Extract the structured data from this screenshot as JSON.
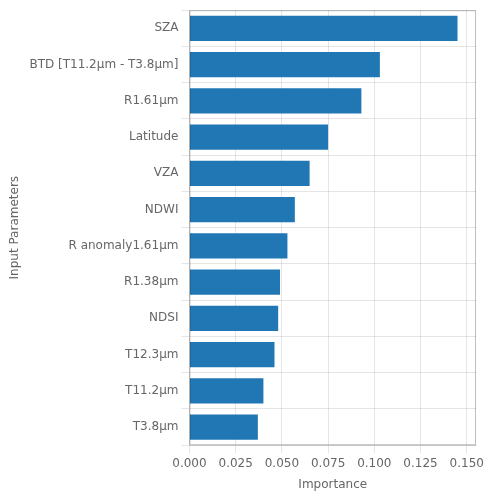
{
  "chart_data": {
    "type": "bar",
    "orientation": "horizontal",
    "xlabel": "Importance",
    "ylabel": "Input Parameters",
    "categories": [
      "T3.8μm",
      "T11.2μm",
      "T12.3μm",
      "NDSI",
      "R1.38μm",
      "R anomaly1.61μm",
      "NDWI",
      "VZA",
      "Latitude",
      "R1.61μm",
      "BTD [T11.2μm - T3.8μm]",
      "SZA"
    ],
    "values": [
      0.037,
      0.04,
      0.046,
      0.048,
      0.049,
      0.053,
      0.057,
      0.065,
      0.075,
      0.093,
      0.103,
      0.145
    ],
    "color": "#2077b4",
    "xlim": [
      0,
      0.155
    ],
    "xticks": [
      {
        "value": 0,
        "label": "0.000"
      },
      0.025,
      {
        "value": 0.05,
        "label": "0.050"
      },
      0.075,
      {
        "value": 0.1,
        "label": "0.100"
      },
      0.125,
      {
        "value": 0.15,
        "label": "0.150"
      }
    ],
    "grid": true
  }
}
